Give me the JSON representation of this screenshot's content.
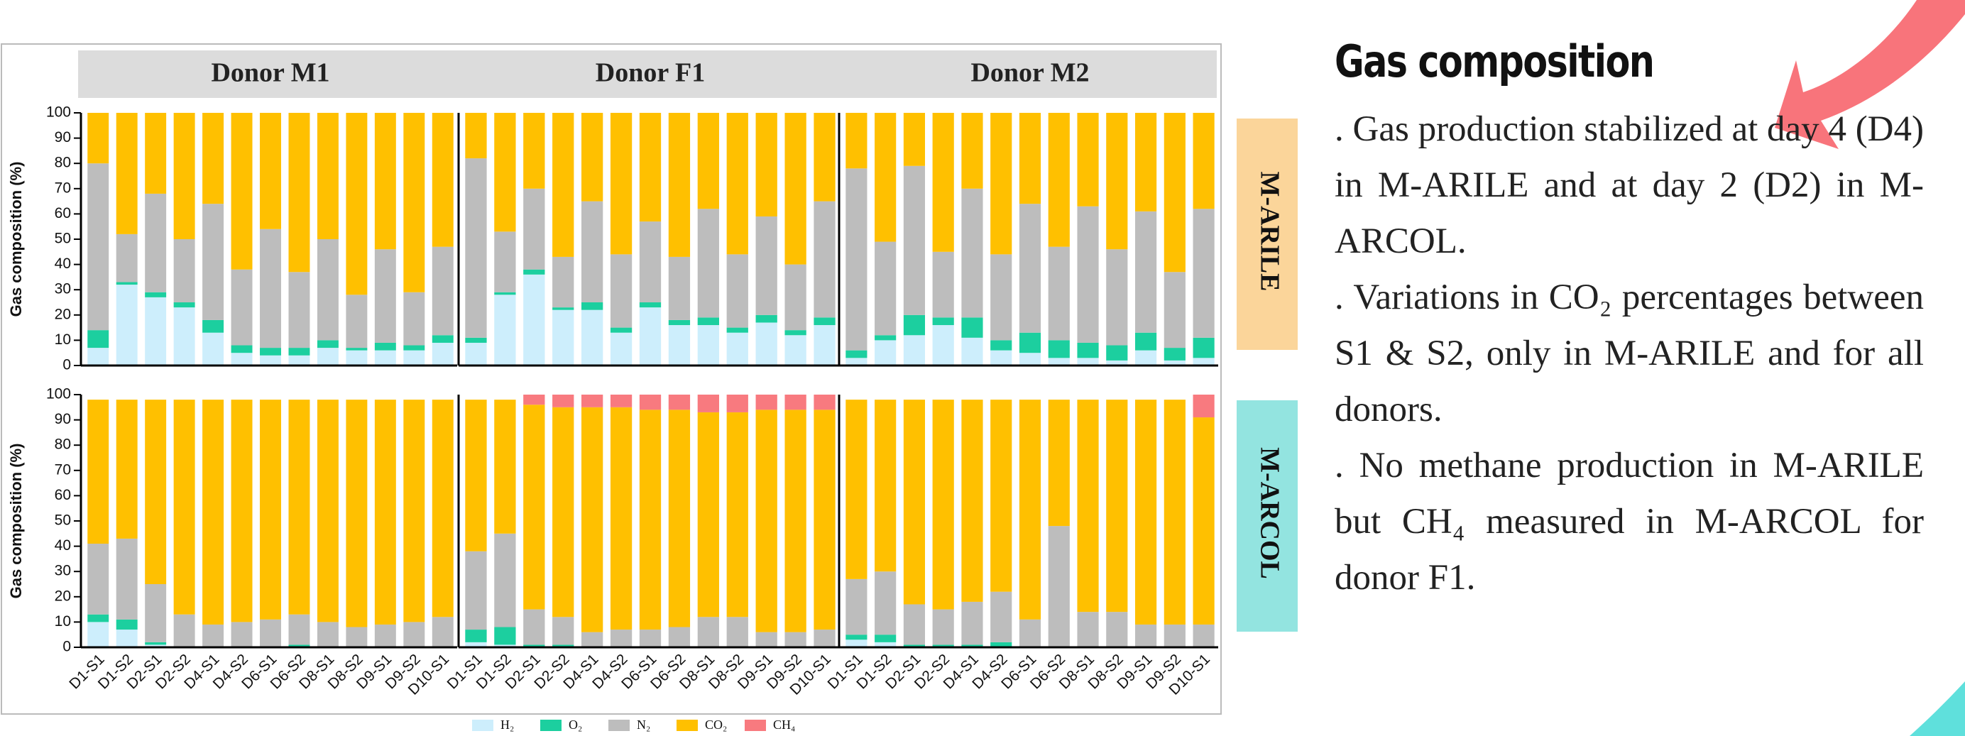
{
  "chart_data": {
    "type": "stacked_bar",
    "ylabel": "Gas composition (%)",
    "columns": [
      "Donor M1",
      "Donor F1",
      "Donor M2"
    ],
    "rows": [
      {
        "label": "M-ARILE",
        "color": "#fbd59a"
      },
      {
        "label": "M-ARCOL",
        "color": "#93e4e0"
      }
    ],
    "categories": [
      "D1-S1",
      "D1-S2",
      "D2-S1",
      "D2-S2",
      "D4-S1",
      "D4-S2",
      "D6-S1",
      "D6-S2",
      "D8-S1",
      "D8-S2",
      "D9-S1",
      "D9-S2",
      "D10-S1"
    ],
    "ylim": [
      0,
      100
    ],
    "yticks": [
      0,
      10,
      20,
      30,
      40,
      50,
      60,
      70,
      80,
      90,
      100
    ],
    "series": [
      {
        "name": "H₂",
        "color": "#cdeefc",
        "values": [
          [
            7,
            32,
            27,
            23,
            13,
            5,
            4,
            4,
            7,
            6,
            6,
            6,
            9
          ],
          [
            9,
            28,
            36,
            22,
            22,
            13,
            23,
            16,
            16,
            13,
            17,
            12,
            16
          ],
          [
            3,
            10,
            12,
            16,
            11,
            6,
            5,
            3,
            3,
            2,
            6,
            2,
            3
          ],
          [
            10,
            7,
            1,
            0,
            0,
            0,
            0,
            0,
            0,
            0,
            0,
            0,
            0
          ],
          [
            2,
            1,
            0,
            0,
            0,
            0,
            0,
            0,
            0,
            0,
            0,
            0,
            0
          ],
          [
            3,
            2,
            0,
            0,
            0,
            0,
            0,
            0,
            0,
            0,
            0,
            0,
            0
          ]
        ]
      },
      {
        "name": "O₂",
        "color": "#1ccf9f",
        "values": [
          [
            7,
            1,
            2,
            2,
            5,
            3,
            3,
            3,
            3,
            1,
            3,
            2,
            3
          ],
          [
            2,
            1,
            2,
            1,
            3,
            2,
            2,
            2,
            3,
            2,
            3,
            2,
            3
          ],
          [
            3,
            2,
            8,
            3,
            8,
            4,
            8,
            7,
            6,
            6,
            7,
            5,
            8
          ],
          [
            3,
            4,
            1,
            0,
            0,
            0,
            0,
            1,
            0,
            0,
            0,
            0,
            0
          ],
          [
            5,
            7,
            1,
            1,
            0,
            0,
            0,
            0,
            0,
            0,
            0,
            0,
            0
          ],
          [
            2,
            3,
            1,
            1,
            1,
            2,
            0,
            0,
            0,
            0,
            0,
            0,
            0
          ]
        ]
      },
      {
        "name": "N₂",
        "color": "#bdbdbd",
        "values": [
          [
            66,
            19,
            39,
            25,
            46,
            30,
            47,
            30,
            40,
            21,
            37,
            21,
            35
          ],
          [
            71,
            24,
            32,
            20,
            40,
            29,
            32,
            25,
            43,
            29,
            39,
            26,
            46
          ],
          [
            72,
            37,
            59,
            26,
            51,
            34,
            51,
            37,
            54,
            38,
            48,
            30,
            51
          ],
          [
            28,
            32,
            23,
            13,
            9,
            10,
            11,
            12,
            10,
            8,
            9,
            10,
            12
          ],
          [
            31,
            37,
            14,
            11,
            6,
            7,
            7,
            8,
            12,
            12,
            6,
            6,
            7
          ],
          [
            22,
            25,
            16,
            14,
            17,
            20,
            11,
            48,
            14,
            14,
            9,
            9,
            9
          ]
        ]
      },
      {
        "name": "CO₂",
        "color": "#ffc000",
        "values": [
          [
            20,
            48,
            32,
            50,
            36,
            62,
            46,
            63,
            50,
            72,
            54,
            71,
            53
          ],
          [
            18,
            47,
            30,
            57,
            35,
            56,
            43,
            57,
            38,
            56,
            41,
            60,
            35
          ],
          [
            22,
            51,
            21,
            55,
            30,
            56,
            36,
            53,
            37,
            54,
            39,
            63,
            38
          ],
          [
            57,
            55,
            73,
            85,
            89,
            88,
            87,
            85,
            88,
            90,
            89,
            88,
            86
          ],
          [
            60,
            53,
            81,
            83,
            89,
            88,
            87,
            86,
            81,
            81,
            88,
            88,
            87
          ],
          [
            71,
            68,
            81,
            83,
            80,
            76,
            87,
            50,
            84,
            84,
            89,
            89,
            82
          ]
        ]
      },
      {
        "name": "CH₄",
        "color": "#f87a7f",
        "values": [
          [
            0,
            0,
            0,
            0,
            0,
            0,
            0,
            0,
            0,
            0,
            0,
            0,
            0
          ],
          [
            0,
            0,
            0,
            0,
            0,
            0,
            0,
            0,
            0,
            0,
            0,
            0,
            0
          ],
          [
            0,
            0,
            0,
            0,
            0,
            0,
            0,
            0,
            0,
            0,
            0,
            0,
            0
          ],
          [
            0,
            0,
            0,
            0,
            0,
            0,
            0,
            0,
            0,
            0,
            0,
            0,
            0
          ],
          [
            0,
            0,
            4,
            5,
            5,
            5,
            6,
            6,
            7,
            7,
            6,
            6,
            6
          ],
          [
            0,
            0,
            0,
            0,
            0,
            0,
            0,
            0,
            0,
            0,
            0,
            0,
            9
          ]
        ]
      }
    ]
  },
  "text_panel": {
    "title": "Gas composition",
    "paragraphs": [
      ". Gas production stabilized at day 4 (D4) in M-ARILE and at day 2 (D2) in M-ARCOL.",
      ". Variations in CO₂ percentages between S1 & S2, only in M-ARILE and for all donors.",
      ". No methane production in M-ARILE but CH₄ measured in M-ARCOL for donor F1."
    ]
  }
}
